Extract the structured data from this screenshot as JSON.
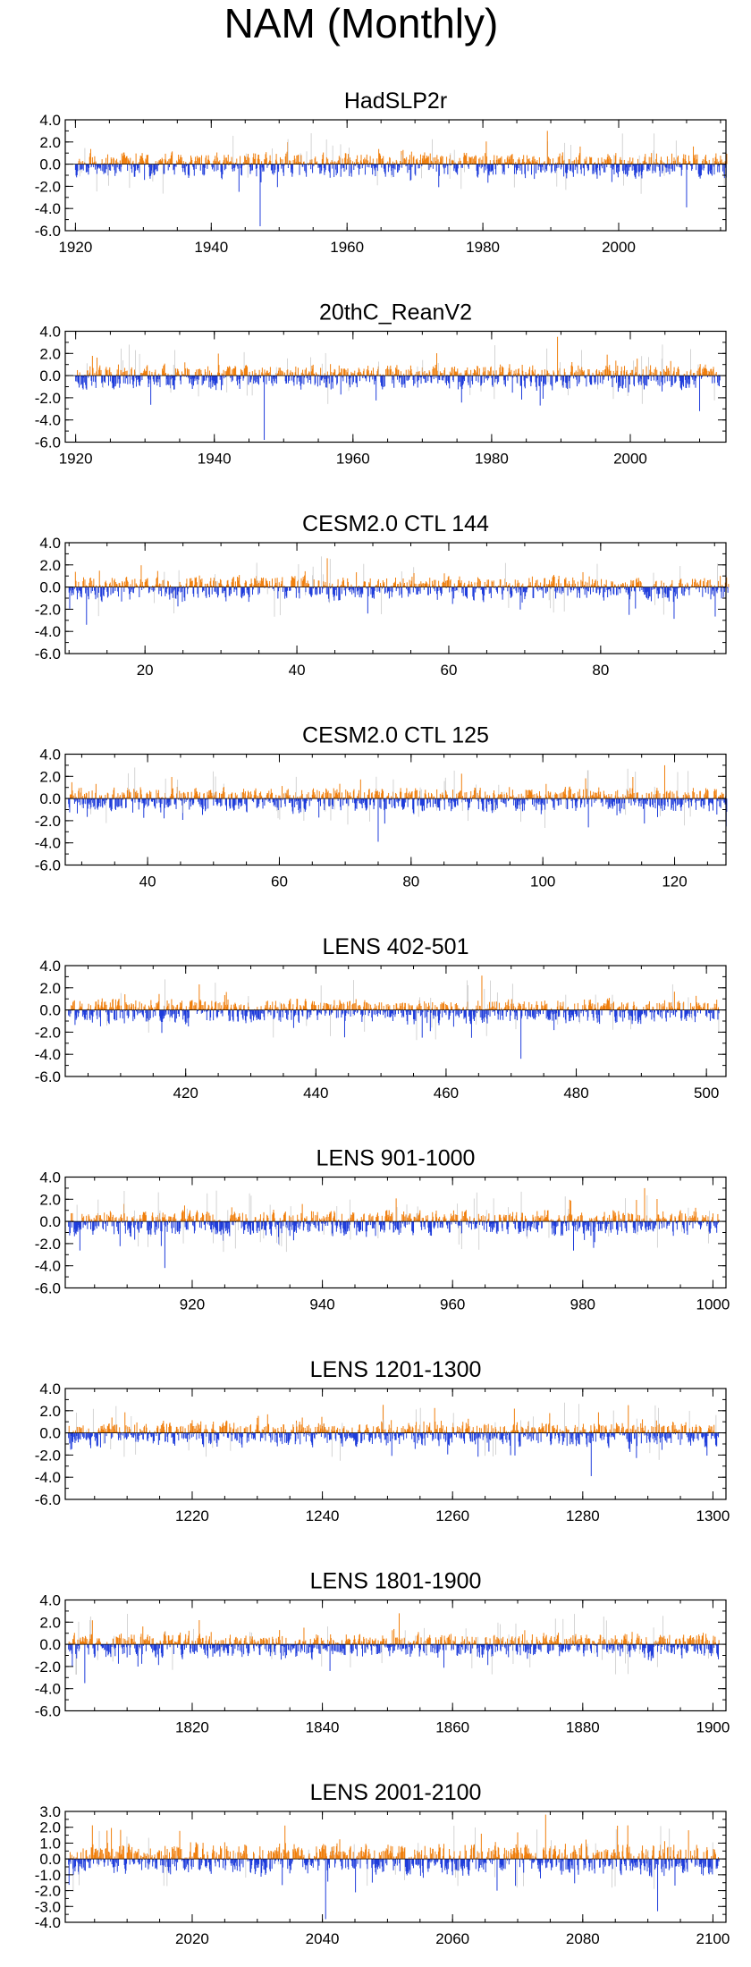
{
  "title": "NAM (Monthly)",
  "colors": {
    "positive": "#f07f0d",
    "negative": "#1f3ddb",
    "faint": "#c9c9c9",
    "axis": "#000000"
  },
  "chart_data": [
    {
      "type": "bar",
      "title": "HadSLP2r",
      "xlim": [
        1918.5,
        2015.8
      ],
      "ylim": [
        -6,
        4
      ],
      "yticks": [
        4,
        2,
        0,
        -2,
        -4,
        -6
      ],
      "ytick_labels": [
        "4.0",
        "2.0",
        "0.0",
        "-2.0",
        "-4.0",
        "-6.0"
      ],
      "xticks": [
        1920,
        1940,
        1960,
        1980,
        2000
      ],
      "xtick_labels": [
        "1920",
        "1940",
        "1960",
        "1980",
        "2000"
      ],
      "x_start": 1920,
      "x_end": 2015,
      "seed": 11,
      "neg_amp": 1.0,
      "peaks": [
        [
          1989.5,
          3.0
        ],
        [
          1947.2,
          -5.6
        ],
        [
          2010.0,
          -3.9
        ]
      ]
    },
    {
      "type": "bar",
      "title": "20thC_ReanV2",
      "xlim": [
        1918.5,
        2013.8
      ],
      "ylim": [
        -6,
        4
      ],
      "yticks": [
        4,
        2,
        0,
        -2,
        -4,
        -6
      ],
      "ytick_labels": [
        "4.0",
        "2.0",
        "0.0",
        "-2.0",
        "-4.0",
        "-6.0"
      ],
      "xticks": [
        1920,
        1940,
        1960,
        1980,
        2000
      ],
      "xtick_labels": [
        "1920",
        "1940",
        "1960",
        "1980",
        "2000"
      ],
      "x_start": 1920,
      "x_end": 2012,
      "seed": 23,
      "neg_amp": 1.0,
      "peaks": [
        [
          1989.5,
          3.5
        ],
        [
          1947.2,
          -5.8
        ],
        [
          2010.0,
          -3.2
        ]
      ]
    },
    {
      "type": "bar",
      "title": "CESM2.0 CTL 144",
      "xlim": [
        9.5,
        96.5
      ],
      "ylim": [
        -6,
        4
      ],
      "yticks": [
        4,
        2,
        0,
        -2,
        -4,
        -6
      ],
      "ytick_labels": [
        "4.0",
        "2.0",
        "0.0",
        "-2.0",
        "-4.0",
        "-6.0"
      ],
      "xticks": [
        20,
        40,
        60,
        80
      ],
      "xtick_labels": [
        "20",
        "40",
        "60",
        "80"
      ],
      "x_start": 10,
      "x_end": 96,
      "seed": 37,
      "neg_amp": 1.0,
      "peaks": [
        [
          44.0,
          2.6
        ],
        [
          12.3,
          -3.4
        ]
      ]
    },
    {
      "type": "bar",
      "title": "CESM2.0 CTL 125",
      "xlim": [
        27.5,
        127.8
      ],
      "ylim": [
        -6,
        4
      ],
      "yticks": [
        4,
        2,
        0,
        -2,
        -4,
        -6
      ],
      "ytick_labels": [
        "4.0",
        "2.0",
        "0.0",
        "-2.0",
        "-4.0",
        "-6.0"
      ],
      "xticks": [
        40,
        60,
        80,
        100,
        120
      ],
      "xtick_labels": [
        "40",
        "60",
        "80",
        "100",
        "120"
      ],
      "x_start": 28,
      "x_end": 127,
      "seed": 41,
      "neg_amp": 1.0,
      "peaks": [
        [
          118.5,
          3.0
        ],
        [
          75.0,
          -3.9
        ]
      ]
    },
    {
      "type": "bar",
      "title": "LENS 402-501",
      "xlim": [
        401.5,
        503.0
      ],
      "ylim": [
        -6,
        4
      ],
      "yticks": [
        4,
        2,
        0,
        -2,
        -4,
        -6
      ],
      "ytick_labels": [
        "4.0",
        "2.0",
        "0.0",
        "-2.0",
        "-4.0",
        "-6.0"
      ],
      "xticks": [
        420,
        440,
        460,
        480,
        500
      ],
      "xtick_labels": [
        "420",
        "440",
        "460",
        "480",
        "500"
      ],
      "x_start": 402,
      "x_end": 501,
      "seed": 53,
      "neg_amp": 1.0,
      "peaks": [
        [
          465.5,
          3.1
        ],
        [
          471.5,
          -4.4
        ]
      ]
    },
    {
      "type": "bar",
      "title": "LENS 901-1000",
      "xlim": [
        900.5,
        1002.0
      ],
      "ylim": [
        -6,
        4
      ],
      "yticks": [
        4,
        2,
        0,
        -2,
        -4,
        -6
      ],
      "ytick_labels": [
        "4.0",
        "2.0",
        "0.0",
        "-2.0",
        "-4.0",
        "-6.0"
      ],
      "xticks": [
        920,
        940,
        960,
        980,
        1000
      ],
      "xtick_labels": [
        "920",
        "940",
        "960",
        "980",
        "1000"
      ],
      "x_start": 901,
      "x_end": 1000,
      "seed": 67,
      "neg_amp": 1.0,
      "peaks": [
        [
          989.5,
          3.0
        ],
        [
          915.8,
          -4.2
        ]
      ]
    },
    {
      "type": "bar",
      "title": "LENS 1201-1300",
      "xlim": [
        1200.5,
        1302.0
      ],
      "ylim": [
        -6,
        4
      ],
      "yticks": [
        4,
        2,
        0,
        -2,
        -4,
        -6
      ],
      "ytick_labels": [
        "4.0",
        "2.0",
        "0.0",
        "-2.0",
        "-4.0",
        "-6.0"
      ],
      "xticks": [
        1220,
        1240,
        1260,
        1280,
        1300
      ],
      "xtick_labels": [
        "1220",
        "1240",
        "1260",
        "1280",
        "1300"
      ],
      "x_start": 1201,
      "x_end": 1300,
      "seed": 79,
      "neg_amp": 1.0,
      "peaks": [
        [
          1287.0,
          2.5
        ],
        [
          1281.3,
          -3.9
        ]
      ]
    },
    {
      "type": "bar",
      "title": "LENS 1801-1900",
      "xlim": [
        1800.5,
        1902.0
      ],
      "ylim": [
        -6,
        4
      ],
      "yticks": [
        4,
        2,
        0,
        -2,
        -4,
        -6
      ],
      "ytick_labels": [
        "4.0",
        "2.0",
        "0.0",
        "-2.0",
        "-4.0",
        "-6.0"
      ],
      "xticks": [
        1820,
        1840,
        1860,
        1880,
        1900
      ],
      "xtick_labels": [
        "1820",
        "1840",
        "1860",
        "1880",
        "1900"
      ],
      "x_start": 1801,
      "x_end": 1900,
      "seed": 83,
      "neg_amp": 1.0,
      "peaks": [
        [
          1851.8,
          2.8
        ],
        [
          1803.5,
          -3.5
        ]
      ]
    },
    {
      "type": "bar",
      "title": "LENS 2001-2100",
      "xlim": [
        2000.5,
        2102.0
      ],
      "ylim": [
        -4,
        3
      ],
      "yticks": [
        3,
        2,
        1,
        0,
        -1,
        -2,
        -3,
        -4
      ],
      "ytick_labels": [
        "3.0",
        "2.0",
        "1.0",
        "0.0",
        "-1.0",
        "-2.0",
        "-3.0",
        "-4.0"
      ],
      "xticks": [
        2020,
        2040,
        2060,
        2080,
        2100
      ],
      "xtick_labels": [
        "2020",
        "2040",
        "2060",
        "2080",
        "2100"
      ],
      "x_start": 2001,
      "x_end": 2100,
      "seed": 97,
      "neg_amp": 0.8,
      "peaks": [
        [
          2074.3,
          2.8
        ],
        [
          2040.5,
          -3.8
        ],
        [
          2091.5,
          -3.3
        ]
      ]
    }
  ]
}
